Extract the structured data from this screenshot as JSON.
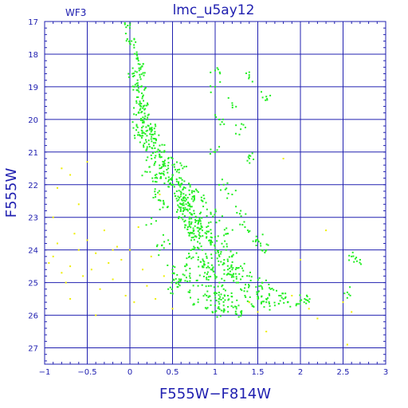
{
  "chart_data": {
    "type": "scatter",
    "title": "lmc_u5ay12",
    "chip_label": "WF3",
    "xlabel": "F555W−F814W",
    "ylabel": "F555W",
    "xlim": [
      -1,
      3
    ],
    "ylim": [
      27.5,
      17
    ],
    "y_inverted": true,
    "grid": true,
    "x_ticks": [
      -1,
      -0.5,
      0,
      0.5,
      1,
      1.5,
      2,
      2.5,
      3
    ],
    "x_tick_labels": [
      "−1",
      "−0.5",
      "0",
      "0.5",
      "1",
      "1.5",
      "2",
      "2.5",
      "3"
    ],
    "y_ticks": [
      17,
      18,
      19,
      20,
      21,
      22,
      23,
      24,
      25,
      26,
      27
    ],
    "y_tick_labels": [
      "17",
      "18",
      "19",
      "20",
      "21",
      "22",
      "23",
      "24",
      "25",
      "26",
      "27"
    ],
    "colors": {
      "axis": "#2020b0",
      "grid": "#2020b0",
      "main": "#22ee22",
      "field": "#eeee00"
    },
    "series": [
      {
        "name": "",
        "color": "#22ee22",
        "points": [
          [
            0.0,
            17.2
          ],
          [
            0.02,
            17.6
          ],
          [
            0.05,
            17.8
          ],
          [
            0.08,
            18.0
          ],
          [
            0.1,
            18.2
          ],
          [
            0.1,
            18.3
          ],
          [
            0.11,
            18.5
          ],
          [
            0.12,
            18.7
          ],
          [
            0.08,
            18.9
          ],
          [
            0.13,
            19.0
          ],
          [
            0.14,
            19.2
          ],
          [
            0.15,
            19.3
          ],
          [
            0.12,
            19.5
          ],
          [
            0.16,
            19.6
          ],
          [
            0.17,
            19.7
          ],
          [
            0.1,
            19.8
          ],
          [
            0.18,
            19.9
          ],
          [
            0.2,
            20.0
          ],
          [
            0.15,
            20.1
          ],
          [
            0.22,
            20.2
          ],
          [
            0.25,
            20.3
          ],
          [
            0.1,
            20.4
          ],
          [
            0.15,
            20.5
          ],
          [
            0.2,
            20.5
          ],
          [
            0.25,
            20.6
          ],
          [
            0.3,
            20.6
          ],
          [
            0.12,
            20.7
          ],
          [
            0.28,
            20.8
          ],
          [
            0.35,
            20.8
          ],
          [
            0.2,
            20.9
          ],
          [
            0.3,
            21.0
          ],
          [
            0.4,
            21.0
          ],
          [
            0.25,
            21.1
          ],
          [
            0.35,
            21.1
          ],
          [
            0.45,
            21.2
          ],
          [
            0.3,
            21.3
          ],
          [
            0.4,
            21.3
          ],
          [
            0.5,
            21.4
          ],
          [
            0.35,
            21.5
          ],
          [
            0.45,
            21.5
          ],
          [
            0.55,
            21.6
          ],
          [
            0.4,
            21.7
          ],
          [
            0.5,
            21.7
          ],
          [
            0.6,
            21.8
          ],
          [
            0.45,
            21.9
          ],
          [
            0.55,
            21.9
          ],
          [
            0.5,
            22.0
          ],
          [
            0.6,
            22.0
          ],
          [
            0.65,
            22.1
          ],
          [
            0.55,
            22.2
          ],
          [
            0.6,
            22.3
          ],
          [
            0.7,
            22.3
          ],
          [
            0.58,
            22.4
          ],
          [
            0.65,
            22.5
          ],
          [
            0.7,
            22.6
          ],
          [
            0.6,
            22.7
          ],
          [
            0.68,
            22.8
          ],
          [
            0.75,
            22.8
          ],
          [
            0.62,
            22.9
          ],
          [
            0.7,
            23.0
          ],
          [
            0.78,
            23.0
          ],
          [
            0.65,
            23.1
          ],
          [
            0.72,
            23.2
          ],
          [
            0.8,
            23.2
          ],
          [
            0.68,
            23.3
          ],
          [
            0.75,
            23.4
          ],
          [
            0.85,
            23.4
          ],
          [
            0.7,
            23.5
          ],
          [
            0.78,
            23.6
          ],
          [
            0.9,
            23.6
          ],
          [
            0.72,
            23.7
          ],
          [
            0.82,
            23.8
          ],
          [
            0.95,
            23.8
          ],
          [
            0.75,
            23.9
          ],
          [
            0.85,
            24.0
          ],
          [
            1.0,
            24.0
          ],
          [
            0.78,
            24.1
          ],
          [
            0.9,
            24.2
          ],
          [
            1.05,
            24.2
          ],
          [
            0.8,
            24.3
          ],
          [
            0.92,
            24.4
          ],
          [
            1.1,
            24.4
          ],
          [
            0.85,
            24.5
          ],
          [
            0.95,
            24.6
          ],
          [
            1.15,
            24.6
          ],
          [
            0.88,
            24.7
          ],
          [
            1.0,
            24.8
          ],
          [
            1.2,
            24.8
          ],
          [
            0.9,
            24.9
          ],
          [
            1.05,
            25.0
          ],
          [
            1.25,
            25.0
          ],
          [
            0.95,
            25.1
          ],
          [
            1.1,
            25.2
          ],
          [
            1.3,
            25.2
          ],
          [
            1.0,
            25.3
          ],
          [
            1.15,
            25.4
          ],
          [
            1.35,
            25.4
          ],
          [
            1.05,
            25.5
          ],
          [
            1.2,
            25.6
          ],
          [
            1.4,
            25.6
          ],
          [
            1.1,
            25.7
          ],
          [
            1.25,
            25.8
          ],
          [
            1.0,
            25.9
          ],
          [
            1.3,
            25.9
          ],
          [
            1.5,
            25.5
          ],
          [
            1.6,
            25.6
          ],
          [
            1.7,
            25.7
          ],
          [
            1.8,
            25.5
          ],
          [
            0.7,
            25.3
          ],
          [
            0.8,
            25.6
          ],
          [
            0.9,
            25.8
          ],
          [
            0.6,
            24.9
          ],
          [
            0.65,
            24.5
          ],
          [
            0.7,
            24.2
          ],
          [
            1.2,
            24.2
          ],
          [
            1.3,
            24.5
          ],
          [
            1.4,
            24.8
          ],
          [
            1.55,
            25.0
          ],
          [
            1.65,
            25.2
          ],
          [
            1.75,
            25.4
          ],
          [
            1.85,
            25.6
          ],
          [
            1.95,
            25.7
          ],
          [
            2.05,
            25.5
          ],
          [
            0.5,
            24.6
          ],
          [
            0.55,
            25.0
          ],
          [
            0.45,
            25.2
          ],
          [
            1.0,
            18.5
          ],
          [
            1.0,
            19.0
          ],
          [
            1.2,
            19.5
          ],
          [
            1.05,
            20.0
          ],
          [
            1.3,
            20.3
          ],
          [
            1.0,
            21.0
          ],
          [
            1.4,
            21.2
          ],
          [
            1.1,
            22.0
          ],
          [
            1.2,
            22.3
          ],
          [
            1.3,
            22.8
          ],
          [
            1.35,
            23.3
          ],
          [
            1.5,
            23.7
          ],
          [
            1.6,
            24.0
          ],
          [
            0.6,
            22.6
          ],
          [
            0.75,
            22.2
          ],
          [
            0.85,
            22.5
          ],
          [
            0.95,
            22.9
          ],
          [
            1.05,
            23.1
          ],
          [
            1.15,
            23.5
          ],
          [
            0.3,
            22.3
          ],
          [
            0.4,
            22.6
          ],
          [
            0.25,
            23.2
          ],
          [
            0.35,
            24.0
          ],
          [
            0.45,
            23.7
          ],
          [
            1.4,
            18.7
          ],
          [
            1.6,
            19.3
          ],
          [
            0.18,
            21.6
          ],
          [
            0.32,
            21.8
          ],
          [
            0.5,
            21.2
          ],
          [
            0.62,
            21.5
          ],
          [
            0.8,
            23.1
          ],
          [
            0.9,
            23.3
          ],
          [
            1.0,
            23.6
          ],
          [
            1.1,
            23.9
          ],
          [
            1.2,
            24.6
          ],
          [
            1.3,
            24.9
          ],
          [
            1.4,
            25.1
          ],
          [
            1.5,
            25.3
          ],
          [
            1.6,
            25.5
          ],
          [
            0.7,
            24.8
          ],
          [
            0.8,
            25.1
          ],
          [
            0.9,
            25.4
          ],
          [
            1.0,
            25.7
          ],
          [
            1.1,
            25.9
          ],
          [
            2.6,
            24.2
          ],
          [
            2.7,
            24.3
          ],
          [
            2.55,
            25.3
          ],
          [
            0.08,
            20.2
          ],
          [
            0.05,
            19.0
          ],
          [
            0.03,
            18.6
          ]
        ]
      },
      {
        "name": "",
        "color": "#eeee00",
        "points": [
          [
            -0.95,
            24.4
          ],
          [
            -0.9,
            24.2
          ],
          [
            -0.85,
            23.8
          ],
          [
            -0.8,
            24.7
          ],
          [
            -0.75,
            25.0
          ],
          [
            -0.7,
            24.5
          ],
          [
            -0.65,
            23.5
          ],
          [
            -0.6,
            24.0
          ],
          [
            -0.55,
            24.8
          ],
          [
            -0.5,
            23.7
          ],
          [
            -0.45,
            24.6
          ],
          [
            -0.4,
            24.1
          ],
          [
            -0.35,
            25.2
          ],
          [
            -0.3,
            23.4
          ],
          [
            -0.25,
            24.4
          ],
          [
            -0.2,
            24.9
          ],
          [
            -0.15,
            23.9
          ],
          [
            -0.1,
            24.3
          ],
          [
            -0.05,
            25.4
          ],
          [
            0.0,
            24.0
          ],
          [
            -0.8,
            21.5
          ],
          [
            -0.7,
            21.7
          ],
          [
            -0.85,
            22.1
          ],
          [
            -0.6,
            22.6
          ],
          [
            -0.9,
            23.0
          ],
          [
            0.05,
            25.6
          ],
          [
            0.1,
            23.3
          ],
          [
            0.15,
            24.6
          ],
          [
            0.2,
            25.1
          ],
          [
            0.25,
            24.2
          ],
          [
            0.3,
            25.5
          ],
          [
            0.4,
            24.8
          ],
          [
            0.5,
            25.8
          ],
          [
            1.8,
            21.2
          ],
          [
            2.0,
            24.3
          ],
          [
            2.1,
            25.8
          ],
          [
            2.3,
            23.4
          ],
          [
            2.5,
            25.6
          ],
          [
            2.6,
            25.9
          ],
          [
            2.55,
            26.9
          ],
          [
            1.6,
            26.5
          ],
          [
            1.5,
            25.9
          ],
          [
            -0.4,
            26.0
          ],
          [
            -0.7,
            25.5
          ],
          [
            0.35,
            22.3
          ],
          [
            -0.5,
            21.3
          ],
          [
            1.4,
            25.6
          ],
          [
            1.9,
            25.4
          ],
          [
            2.2,
            26.1
          ],
          [
            -0.2,
            24.0
          ]
        ]
      }
    ]
  }
}
